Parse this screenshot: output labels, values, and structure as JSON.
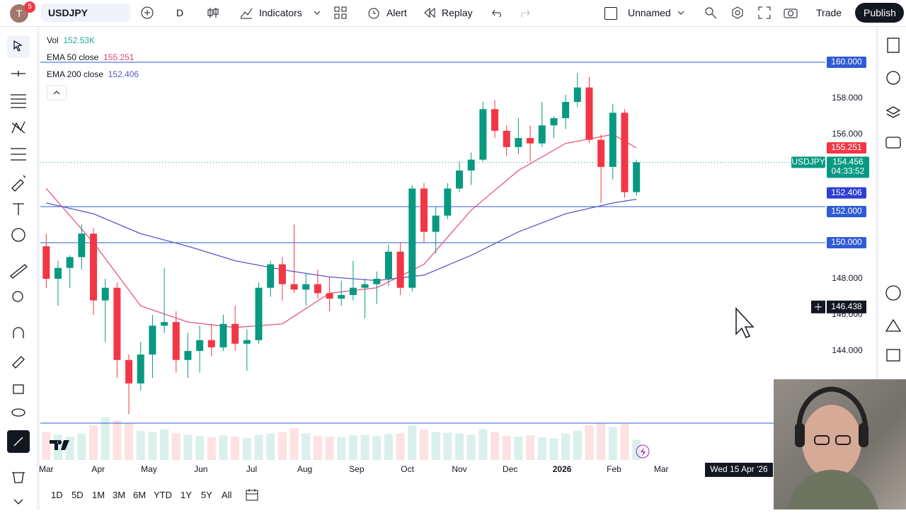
{
  "toolbar": {
    "avatar": "T",
    "badge": "5",
    "symbol": "USDJPY",
    "interval": "D",
    "indicators": "Indicators",
    "alert": "Alert",
    "replay": "Replay",
    "layout": "Unnamed",
    "trade": "Trade",
    "publish": "Publish"
  },
  "chart_data": {
    "type": "candlestick",
    "symbol_tag": "USDJPY",
    "up_color": "#089981",
    "down_color": "#f23645",
    "candles": {
      "open": [
        149.8,
        148.0,
        148.6,
        149.2,
        150.5,
        146.8,
        147.5,
        143.5,
        142.2,
        143.8,
        145.4,
        145.6,
        143.5,
        144.0,
        144.6,
        144.2,
        145.5,
        144.4,
        144.6,
        147.5,
        148.8,
        147.7,
        147.4,
        147.7,
        147.2,
        146.9,
        147.1,
        147.5,
        147.7,
        148.0,
        149.5,
        147.5,
        153.0,
        150.6,
        151.5,
        153.0,
        154.0,
        154.6,
        157.4,
        156.2,
        155.3,
        155.8,
        155.5,
        156.5,
        156.9,
        157.8,
        158.6,
        155.7,
        154.2,
        157.2,
        152.8
      ],
      "high": [
        150.5,
        149.0,
        149.3,
        151.0,
        150.8,
        148.0,
        147.8,
        143.8,
        144.5,
        146.0,
        148.6,
        146.2,
        145.0,
        145.4,
        145.5,
        146.0,
        146.5,
        145.2,
        147.8,
        149.0,
        149.2,
        151.0,
        148.3,
        148.5,
        148.1,
        147.9,
        149.0,
        148.0,
        148.4,
        149.9,
        150.0,
        153.2,
        153.3,
        152.0,
        153.3,
        154.5,
        155.0,
        157.8,
        157.9,
        156.5,
        156.9,
        156.5,
        157.8,
        157.0,
        158.2,
        159.4,
        159.2,
        156.0,
        157.7,
        157.4,
        154.6
      ],
      "low": [
        147.5,
        146.5,
        147.5,
        148.5,
        146.0,
        144.5,
        142.5,
        140.5,
        141.8,
        142.5,
        145.0,
        142.8,
        142.5,
        142.8,
        143.7,
        144.0,
        144.0,
        142.9,
        144.4,
        147.0,
        146.8,
        147.2,
        146.5,
        146.9,
        146.2,
        146.5,
        146.8,
        145.8,
        146.6,
        147.6,
        147.1,
        147.3,
        150.0,
        149.4,
        151.3,
        152.8,
        153.2,
        154.5,
        155.8,
        154.8,
        154.9,
        154.5,
        155.3,
        155.8,
        156.3,
        157.5,
        155.5,
        152.2,
        153.5,
        152.5,
        152.6
      ],
      "close": [
        148.0,
        148.6,
        149.2,
        150.5,
        146.8,
        147.5,
        143.5,
        142.2,
        143.8,
        145.4,
        145.6,
        143.5,
        144.0,
        144.6,
        144.2,
        145.5,
        144.4,
        144.6,
        147.5,
        148.8,
        147.7,
        147.4,
        147.7,
        147.2,
        146.9,
        147.1,
        147.5,
        147.7,
        148.0,
        149.5,
        147.5,
        153.0,
        150.6,
        151.5,
        153.0,
        154.0,
        154.6,
        157.4,
        156.2,
        155.3,
        155.8,
        155.5,
        156.5,
        156.9,
        157.8,
        158.6,
        155.7,
        154.2,
        157.2,
        152.8,
        154.456
      ]
    },
    "volume_name": "Vol",
    "volume": [
      210000,
      190000,
      175000,
      200000,
      260000,
      320000,
      300000,
      280000,
      220000,
      210000,
      230000,
      200000,
      190000,
      180000,
      170000,
      185000,
      175000,
      165000,
      190000,
      200000,
      210000,
      240000,
      200000,
      180000,
      175000,
      170000,
      185000,
      190000,
      180000,
      195000,
      200000,
      260000,
      230000,
      210000,
      205000,
      200000,
      190000,
      230000,
      210000,
      180000,
      175000,
      185000,
      170000,
      160000,
      200000,
      220000,
      260000,
      280000,
      250000,
      270000,
      152530
    ],
    "volume_label": "152.53K",
    "series": [
      {
        "name": "EMA 50 close",
        "color": "#e8577d",
        "x": [
          0,
          4,
          8,
          12,
          16,
          20,
          24,
          28,
          32,
          36,
          40,
          44,
          48,
          50
        ],
        "values": [
          153.0,
          150.0,
          146.5,
          145.6,
          145.3,
          145.5,
          147.2,
          147.5,
          148.8,
          151.8,
          154.0,
          155.5,
          156.0,
          155.251
        ]
      },
      {
        "name": "EMA 200 close",
        "color": "#5b55cf",
        "x": [
          0,
          4,
          8,
          12,
          16,
          20,
          24,
          28,
          32,
          36,
          40,
          44,
          48,
          50
        ],
        "values": [
          152.2,
          151.6,
          150.5,
          149.8,
          149.0,
          148.5,
          148.1,
          147.9,
          148.2,
          149.3,
          150.6,
          151.6,
          152.2,
          152.406
        ]
      }
    ],
    "xlim": [
      -0.5,
      66
    ],
    "xticks": [
      {
        "value": 0,
        "label": "Mar"
      },
      {
        "value": 4.4,
        "label": "Apr"
      },
      {
        "value": 8.7,
        "label": "May"
      },
      {
        "value": 13.1,
        "label": "Jun"
      },
      {
        "value": 17.4,
        "label": "Jul"
      },
      {
        "value": 21.9,
        "label": "Aug"
      },
      {
        "value": 26.3,
        "label": "Sep"
      },
      {
        "value": 30.6,
        "label": "Oct"
      },
      {
        "value": 35,
        "label": "Nov"
      },
      {
        "value": 39.3,
        "label": "Dec"
      },
      {
        "value": 43.7,
        "label": "2026"
      },
      {
        "value": 48.1,
        "label": "Feb"
      },
      {
        "value": 52.1,
        "label": "Mar"
      }
    ],
    "ylim": [
      137.96,
      161.88
    ],
    "yticks": [
      {
        "value": 158,
        "label": "158.000"
      },
      {
        "value": 156,
        "label": "156.000"
      },
      {
        "value": 148,
        "label": "148.000"
      },
      {
        "value": 146,
        "label": "146.000"
      },
      {
        "value": 144,
        "label": "144.000"
      }
    ],
    "grid": false,
    "hlines": [
      {
        "value": 160,
        "label": "160.000"
      },
      {
        "value": 152,
        "label": "152.000"
      },
      {
        "value": 150,
        "label": "150.000"
      },
      {
        "value": 140
      }
    ],
    "hline_color": "#2f5bd3",
    "countdown": "04:33:52",
    "crosshair": {
      "value": 146.438,
      "label": "146.438",
      "date_label": "Wed 15 Apr '26"
    }
  },
  "ranges": [
    "1D",
    "5D",
    "1M",
    "3M",
    "6M",
    "YTD",
    "1Y",
    "5Y",
    "All"
  ]
}
